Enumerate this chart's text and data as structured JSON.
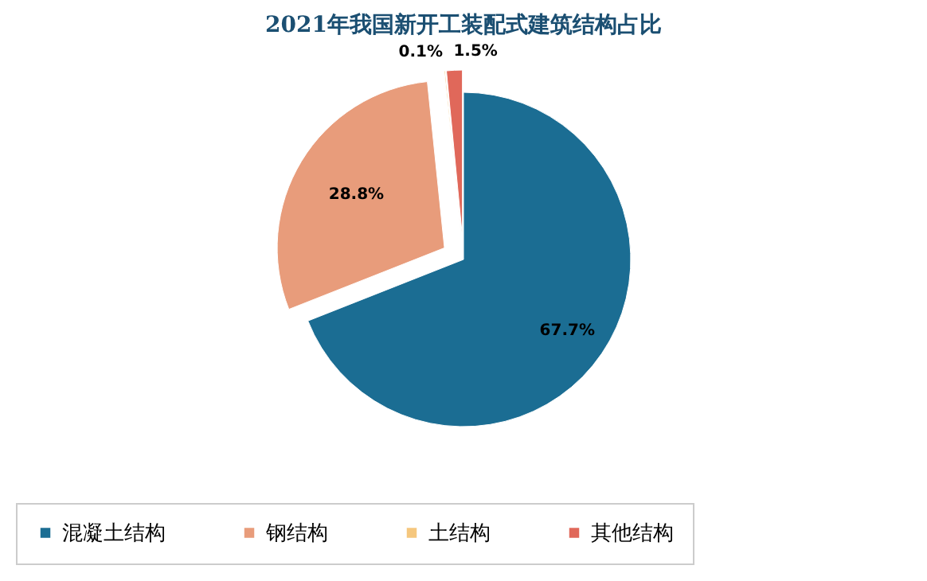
{
  "chart_data": {
    "type": "pie",
    "title": "2021年我国新开工装配式建筑结构占比",
    "categories": [
      "混凝土结构",
      "钢结构",
      "土结构",
      "其他结构"
    ],
    "values": [
      67.7,
      28.8,
      0.1,
      1.5
    ],
    "colors": [
      "#1b6d93",
      "#e89c7b",
      "#f5c77e",
      "#e0685a"
    ],
    "value_labels": [
      "67.7%",
      "28.8%",
      "0.1%",
      "1.5%"
    ],
    "legend": "bottom"
  }
}
